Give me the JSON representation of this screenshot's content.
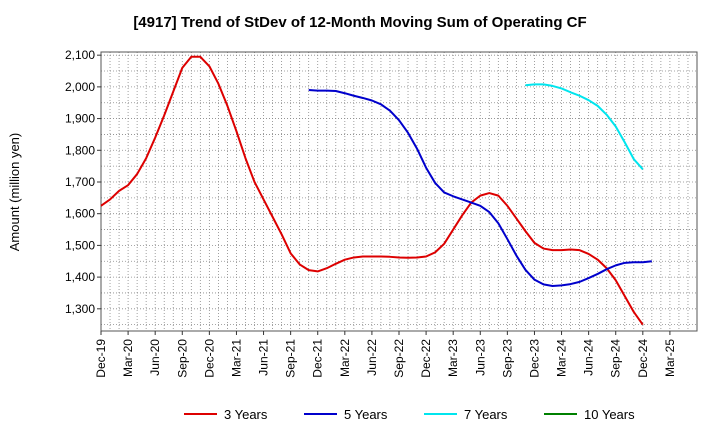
{
  "chart_data": {
    "type": "line",
    "title": "[4917]  Trend of StDev of 12-Month Moving Sum of Operating CF",
    "ylabel": "Amount (million yen)",
    "xlabel": "",
    "ylim": [
      1230,
      2110
    ],
    "yticks": [
      1300,
      1400,
      1500,
      1600,
      1700,
      1800,
      1900,
      2000,
      2100
    ],
    "ytick_labels": [
      "1,300",
      "1,400",
      "1,500",
      "1,600",
      "1,700",
      "1,800",
      "1,900",
      "2,000",
      "2,100"
    ],
    "x_months": [
      "2019-12",
      "2020-01",
      "2020-02",
      "2020-03",
      "2020-04",
      "2020-05",
      "2020-06",
      "2020-07",
      "2020-08",
      "2020-09",
      "2020-10",
      "2020-11",
      "2020-12",
      "2021-01",
      "2021-02",
      "2021-03",
      "2021-04",
      "2021-05",
      "2021-06",
      "2021-07",
      "2021-08",
      "2021-09",
      "2021-10",
      "2021-11",
      "2021-12",
      "2022-01",
      "2022-02",
      "2022-03",
      "2022-04",
      "2022-05",
      "2022-06",
      "2022-07",
      "2022-08",
      "2022-09",
      "2022-10",
      "2022-11",
      "2022-12",
      "2023-01",
      "2023-02",
      "2023-03",
      "2023-04",
      "2023-05",
      "2023-06",
      "2023-07",
      "2023-08",
      "2023-09",
      "2023-10",
      "2023-11",
      "2023-12",
      "2024-01",
      "2024-02",
      "2024-03",
      "2024-04",
      "2024-05",
      "2024-06",
      "2024-07",
      "2024-08",
      "2024-09",
      "2024-10",
      "2024-11",
      "2024-12"
    ],
    "xticks": [
      "Dec-19",
      "Mar-20",
      "Jun-20",
      "Sep-20",
      "Dec-20",
      "Mar-21",
      "Jun-21",
      "Sep-21",
      "Dec-21",
      "Mar-22",
      "Jun-22",
      "Sep-22",
      "Dec-22",
      "Mar-23",
      "Jun-23",
      "Sep-23",
      "Dec-23",
      "Mar-24",
      "Jun-24",
      "Sep-24",
      "Dec-24",
      "Mar-25"
    ],
    "grid": true,
    "legend_position": "bottom",
    "series": [
      {
        "name": "3 Years",
        "color": "#dd0000",
        "start": "2019-12",
        "values": [
          1625,
          1645,
          1672,
          1690,
          1725,
          1775,
          1840,
          1910,
          1985,
          2060,
          2095,
          2095,
          2065,
          2010,
          1940,
          1860,
          1775,
          1700,
          1645,
          1590,
          1535,
          1475,
          1440,
          1422,
          1418,
          1428,
          1442,
          1455,
          1462,
          1465,
          1465,
          1465,
          1464,
          1462,
          1461,
          1462,
          1465,
          1478,
          1505,
          1550,
          1595,
          1635,
          1657,
          1665,
          1657,
          1625,
          1585,
          1545,
          1508,
          1490,
          1485,
          1485,
          1487,
          1485,
          1473,
          1455,
          1428,
          1390,
          1340,
          1290,
          1250
        ]
      },
      {
        "name": "5 Years",
        "color": "#0000cc",
        "start": "2021-11",
        "values": [
          1990,
          1988,
          1988,
          1987,
          1980,
          1972,
          1965,
          1957,
          1945,
          1925,
          1895,
          1855,
          1805,
          1745,
          1697,
          1667,
          1655,
          1645,
          1635,
          1625,
          1605,
          1570,
          1520,
          1468,
          1423,
          1392,
          1377,
          1372,
          1374,
          1378,
          1385,
          1397,
          1410,
          1425,
          1437,
          1445,
          1447,
          1447,
          1450
        ]
      },
      {
        "name": "7 Years",
        "color": "#00e5ee",
        "start": "2023-11",
        "values": [
          2005,
          2008,
          2008,
          2003,
          1995,
          1983,
          1972,
          1958,
          1940,
          1912,
          1875,
          1825,
          1772,
          1740
        ]
      },
      {
        "name": "10 Years",
        "color": "#008000",
        "start": "2024-12",
        "values": []
      }
    ]
  }
}
